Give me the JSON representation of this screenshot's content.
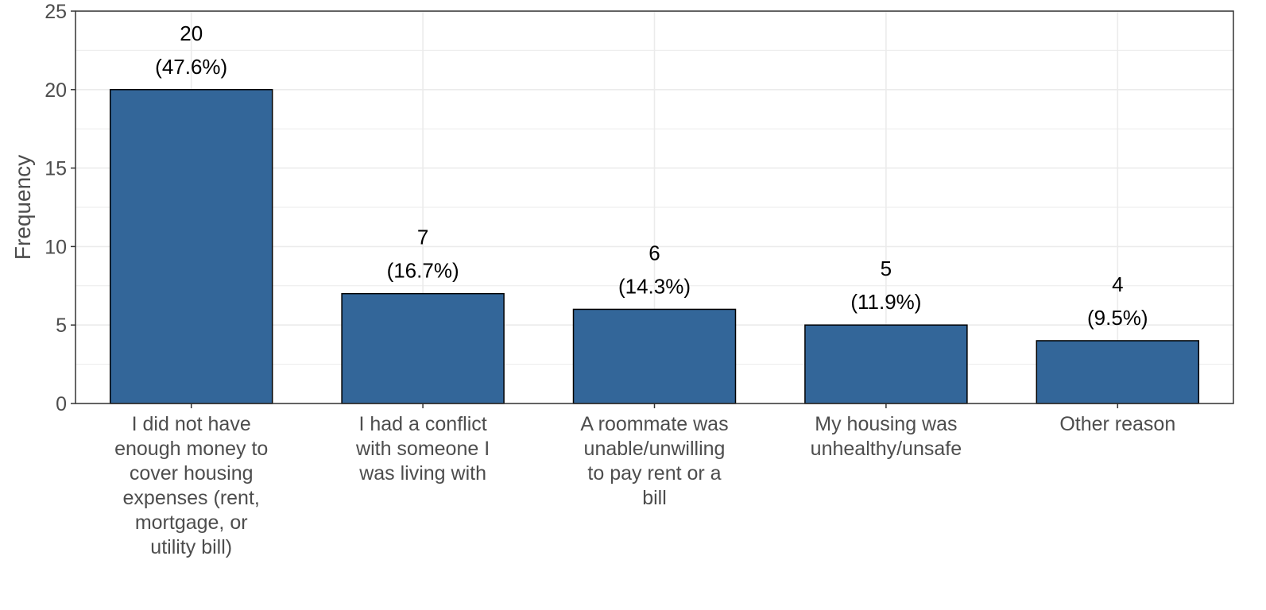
{
  "chart_data": {
    "type": "bar",
    "title": "",
    "xlabel": "",
    "ylabel": "Frequency",
    "ylim": [
      0,
      25
    ],
    "yticks": [
      0,
      5,
      10,
      15,
      20,
      25
    ],
    "grid": true,
    "legend": "none",
    "categories": [
      [
        "I did not have",
        "enough money to",
        "cover housing",
        "expenses (rent,",
        "mortgage, or",
        "utility bill)"
      ],
      [
        "I had a conflict",
        "with someone I",
        "was living with"
      ],
      [
        "A roommate was",
        "unable/unwilling",
        "to pay rent or a",
        "bill"
      ],
      [
        "My housing was",
        "unhealthy/unsafe"
      ],
      [
        "Other reason"
      ]
    ],
    "values": [
      20,
      7,
      6,
      5,
      4
    ],
    "value_labels": [
      "20",
      "7",
      "6",
      "5",
      "4"
    ],
    "percent_labels": [
      "(47.6%)",
      "(16.7%)",
      "(14.3%)",
      "(11.9%)",
      "(9.5%)"
    ],
    "colors": {
      "bar_fill": "#336699",
      "bar_stroke": "#000000",
      "grid": "#ebebeb",
      "panel_border": "#333333",
      "axis_text": "#4d4d4d"
    }
  }
}
